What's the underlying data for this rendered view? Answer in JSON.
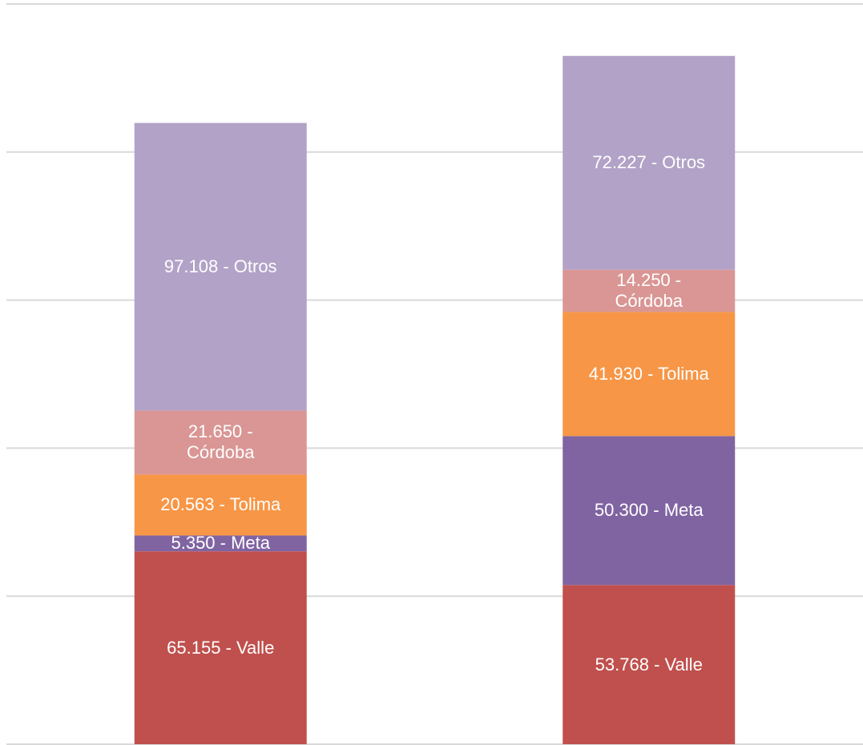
{
  "chart_data": {
    "type": "stacked-bar",
    "categories": [
      null,
      null
    ],
    "series": [
      {
        "name": "Valle",
        "color": "#c0504d",
        "values": [
          65155,
          53768
        ],
        "value_labels": [
          "65.155 - Valle",
          "53.768 - Valle"
        ]
      },
      {
        "name": "Meta",
        "color": "#8064a2",
        "values": [
          5350,
          50300
        ],
        "value_labels": [
          "5.350 - Meta",
          "50.300 - Meta"
        ]
      },
      {
        "name": "Tolima",
        "color": "#f79646",
        "values": [
          20563,
          41930
        ],
        "value_labels": [
          "20.563 - Tolima",
          "41.930 - Tolima"
        ]
      },
      {
        "name": "Córdoba",
        "color": "#d99694",
        "values": [
          21650,
          14250
        ],
        "value_labels": [
          "21.650 - Córdoba",
          "14.250 - Córdoba"
        ]
      },
      {
        "name": "Otros",
        "color": "#b2a2c7",
        "values": [
          97108,
          72227
        ],
        "value_labels": [
          "97.108 - Otros",
          "72.227 - Otros"
        ]
      }
    ],
    "ylim": [
      0,
      250000
    ],
    "yticks": [
      0,
      50000,
      100000,
      150000,
      200000,
      250000
    ],
    "grid": true
  }
}
